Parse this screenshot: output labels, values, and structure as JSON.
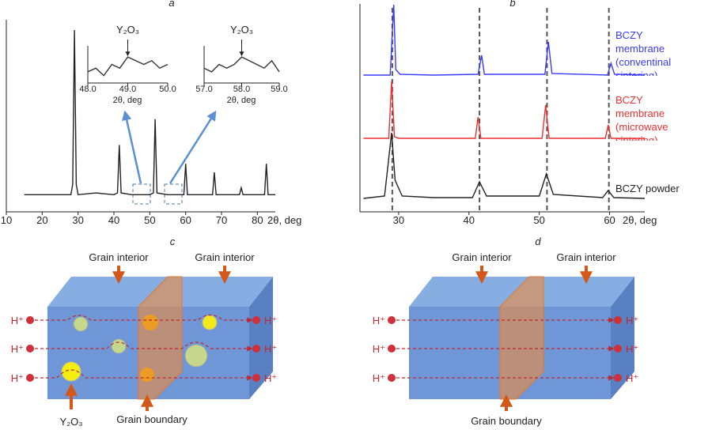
{
  "chart_data": [
    {
      "type": "line",
      "title": "a",
      "color": "#222222",
      "xlabel": "2θ, deg",
      "x": [
        15,
        25,
        28,
        28.5,
        29,
        29.5,
        30,
        35,
        40,
        41,
        41.5,
        42,
        45,
        50,
        51,
        51.5,
        52,
        55,
        59.5,
        60,
        60.5,
        65,
        67.5,
        68,
        68.5,
        75,
        75.5,
        76,
        82,
        82.5,
        83,
        85
      ],
      "values": [
        4,
        4,
        4,
        10,
        100,
        10,
        4,
        5,
        4,
        5,
        33,
        5,
        4,
        4,
        5,
        48,
        5,
        4,
        4,
        22,
        4,
        4,
        4,
        17,
        4,
        4,
        8,
        4,
        4,
        22,
        4,
        4
      ],
      "xlim": [
        10,
        85
      ],
      "xticks": [
        10,
        20,
        30,
        40,
        50,
        60,
        70,
        80
      ],
      "ylim": [
        -6,
        100
      ],
      "grid": false
    },
    {
      "type": "line",
      "color": "#333333",
      "xlabel": "2θ, deg",
      "x": [
        48.0,
        48.2,
        48.4,
        48.6,
        48.8,
        49.0,
        49.2,
        49.4,
        49.6,
        49.8,
        50.0
      ],
      "values": [
        3,
        4,
        2,
        5,
        4,
        7,
        6,
        5,
        6,
        4,
        5
      ],
      "xlim": [
        48,
        50
      ],
      "xticks": [
        {
          "value": 48,
          "label": "48.0"
        },
        {
          "value": 49,
          "label": "49.0"
        },
        {
          "value": 50,
          "label": "50.0"
        }
      ],
      "ylim": [
        0,
        10
      ],
      "annotations": [
        {
          "text": "Y₂O₃",
          "x": 49.0
        }
      ]
    },
    {
      "type": "line",
      "color": "#333333",
      "xlabel": "2θ, deg",
      "x": [
        57.0,
        57.2,
        57.4,
        57.6,
        57.8,
        58.0,
        58.2,
        58.4,
        58.6,
        58.8,
        59.0
      ],
      "values": [
        4,
        3,
        5,
        4,
        5,
        7,
        6,
        5,
        4,
        6,
        3
      ],
      "xlim": [
        57,
        59
      ],
      "xticks": [
        {
          "value": 57,
          "label": "57.0"
        },
        {
          "value": 58,
          "label": "58.0"
        },
        {
          "value": 59,
          "label": "59.0"
        }
      ],
      "ylim": [
        0,
        10
      ],
      "annotations": [
        {
          "text": "Y₂O₃",
          "x": 58.0
        }
      ]
    },
    {
      "type": "line",
      "title": "b",
      "xlabel": "2θ, deg",
      "xlim": [
        24.5,
        65
      ],
      "xticks": [
        30,
        40,
        50,
        60
      ],
      "ylim": [
        0,
        263
      ],
      "grid": false,
      "reference_lines": [
        29.1,
        41.5,
        51.1,
        59.9
      ],
      "series": [
        {
          "name": "BCZY membrane (conventinal sintering)",
          "color": "#3a3aff",
          "x": [
            25,
            28.8,
            29.3,
            29.6,
            30.2,
            35,
            41.3,
            41.8,
            42.2,
            50.8,
            51.3,
            51.8,
            59.7,
            60.2,
            60.7,
            65
          ],
          "values": [
            173,
            173,
            262,
            180,
            174,
            173,
            174,
            198,
            174,
            174,
            215,
            175,
            173,
            188,
            174,
            173
          ]
        },
        {
          "name": "BCZY membrane (microwave sintering)",
          "color": "#f03030",
          "x": [
            25,
            28.6,
            29,
            29.4,
            30,
            35,
            40.9,
            41.3,
            41.7,
            50.4,
            50.9,
            51.4,
            59.4,
            59.8,
            60.2,
            65
          ],
          "values": [
            93,
            93,
            165,
            95,
            93,
            93,
            93,
            120,
            93,
            93,
            135,
            93,
            93,
            110,
            93,
            93
          ]
        },
        {
          "name": "BCZY powder",
          "color": "#222222",
          "x": [
            25,
            28,
            29,
            29.5,
            30.5,
            35,
            40.5,
            41.5,
            42.5,
            50,
            51,
            52,
            59,
            59.8,
            60.6,
            65
          ],
          "values": [
            17,
            20,
            100,
            40,
            20,
            18,
            18,
            38,
            20,
            20,
            48,
            22,
            18,
            27,
            18,
            17
          ]
        }
      ]
    }
  ],
  "panels": [
    {
      "label": "c",
      "grain_interior": [
        "Grain interior",
        "Grain interior"
      ],
      "protons_left": [
        "H⁺",
        "H⁺",
        "H⁺"
      ],
      "protons_right": [
        "H⁺",
        "H⁺",
        "H⁺"
      ],
      "particle_label": "Y₂O₃",
      "boundary_label": "Grain boundary"
    },
    {
      "label": "d",
      "grain_interior": [
        "Grain interior",
        "Grain interior"
      ],
      "protons_left": [
        "H⁺",
        "H⁺",
        "H⁺"
      ],
      "protons_right": [
        "H⁺",
        "H⁺",
        "H⁺"
      ],
      "boundary_label": "Grain boundary"
    }
  ]
}
